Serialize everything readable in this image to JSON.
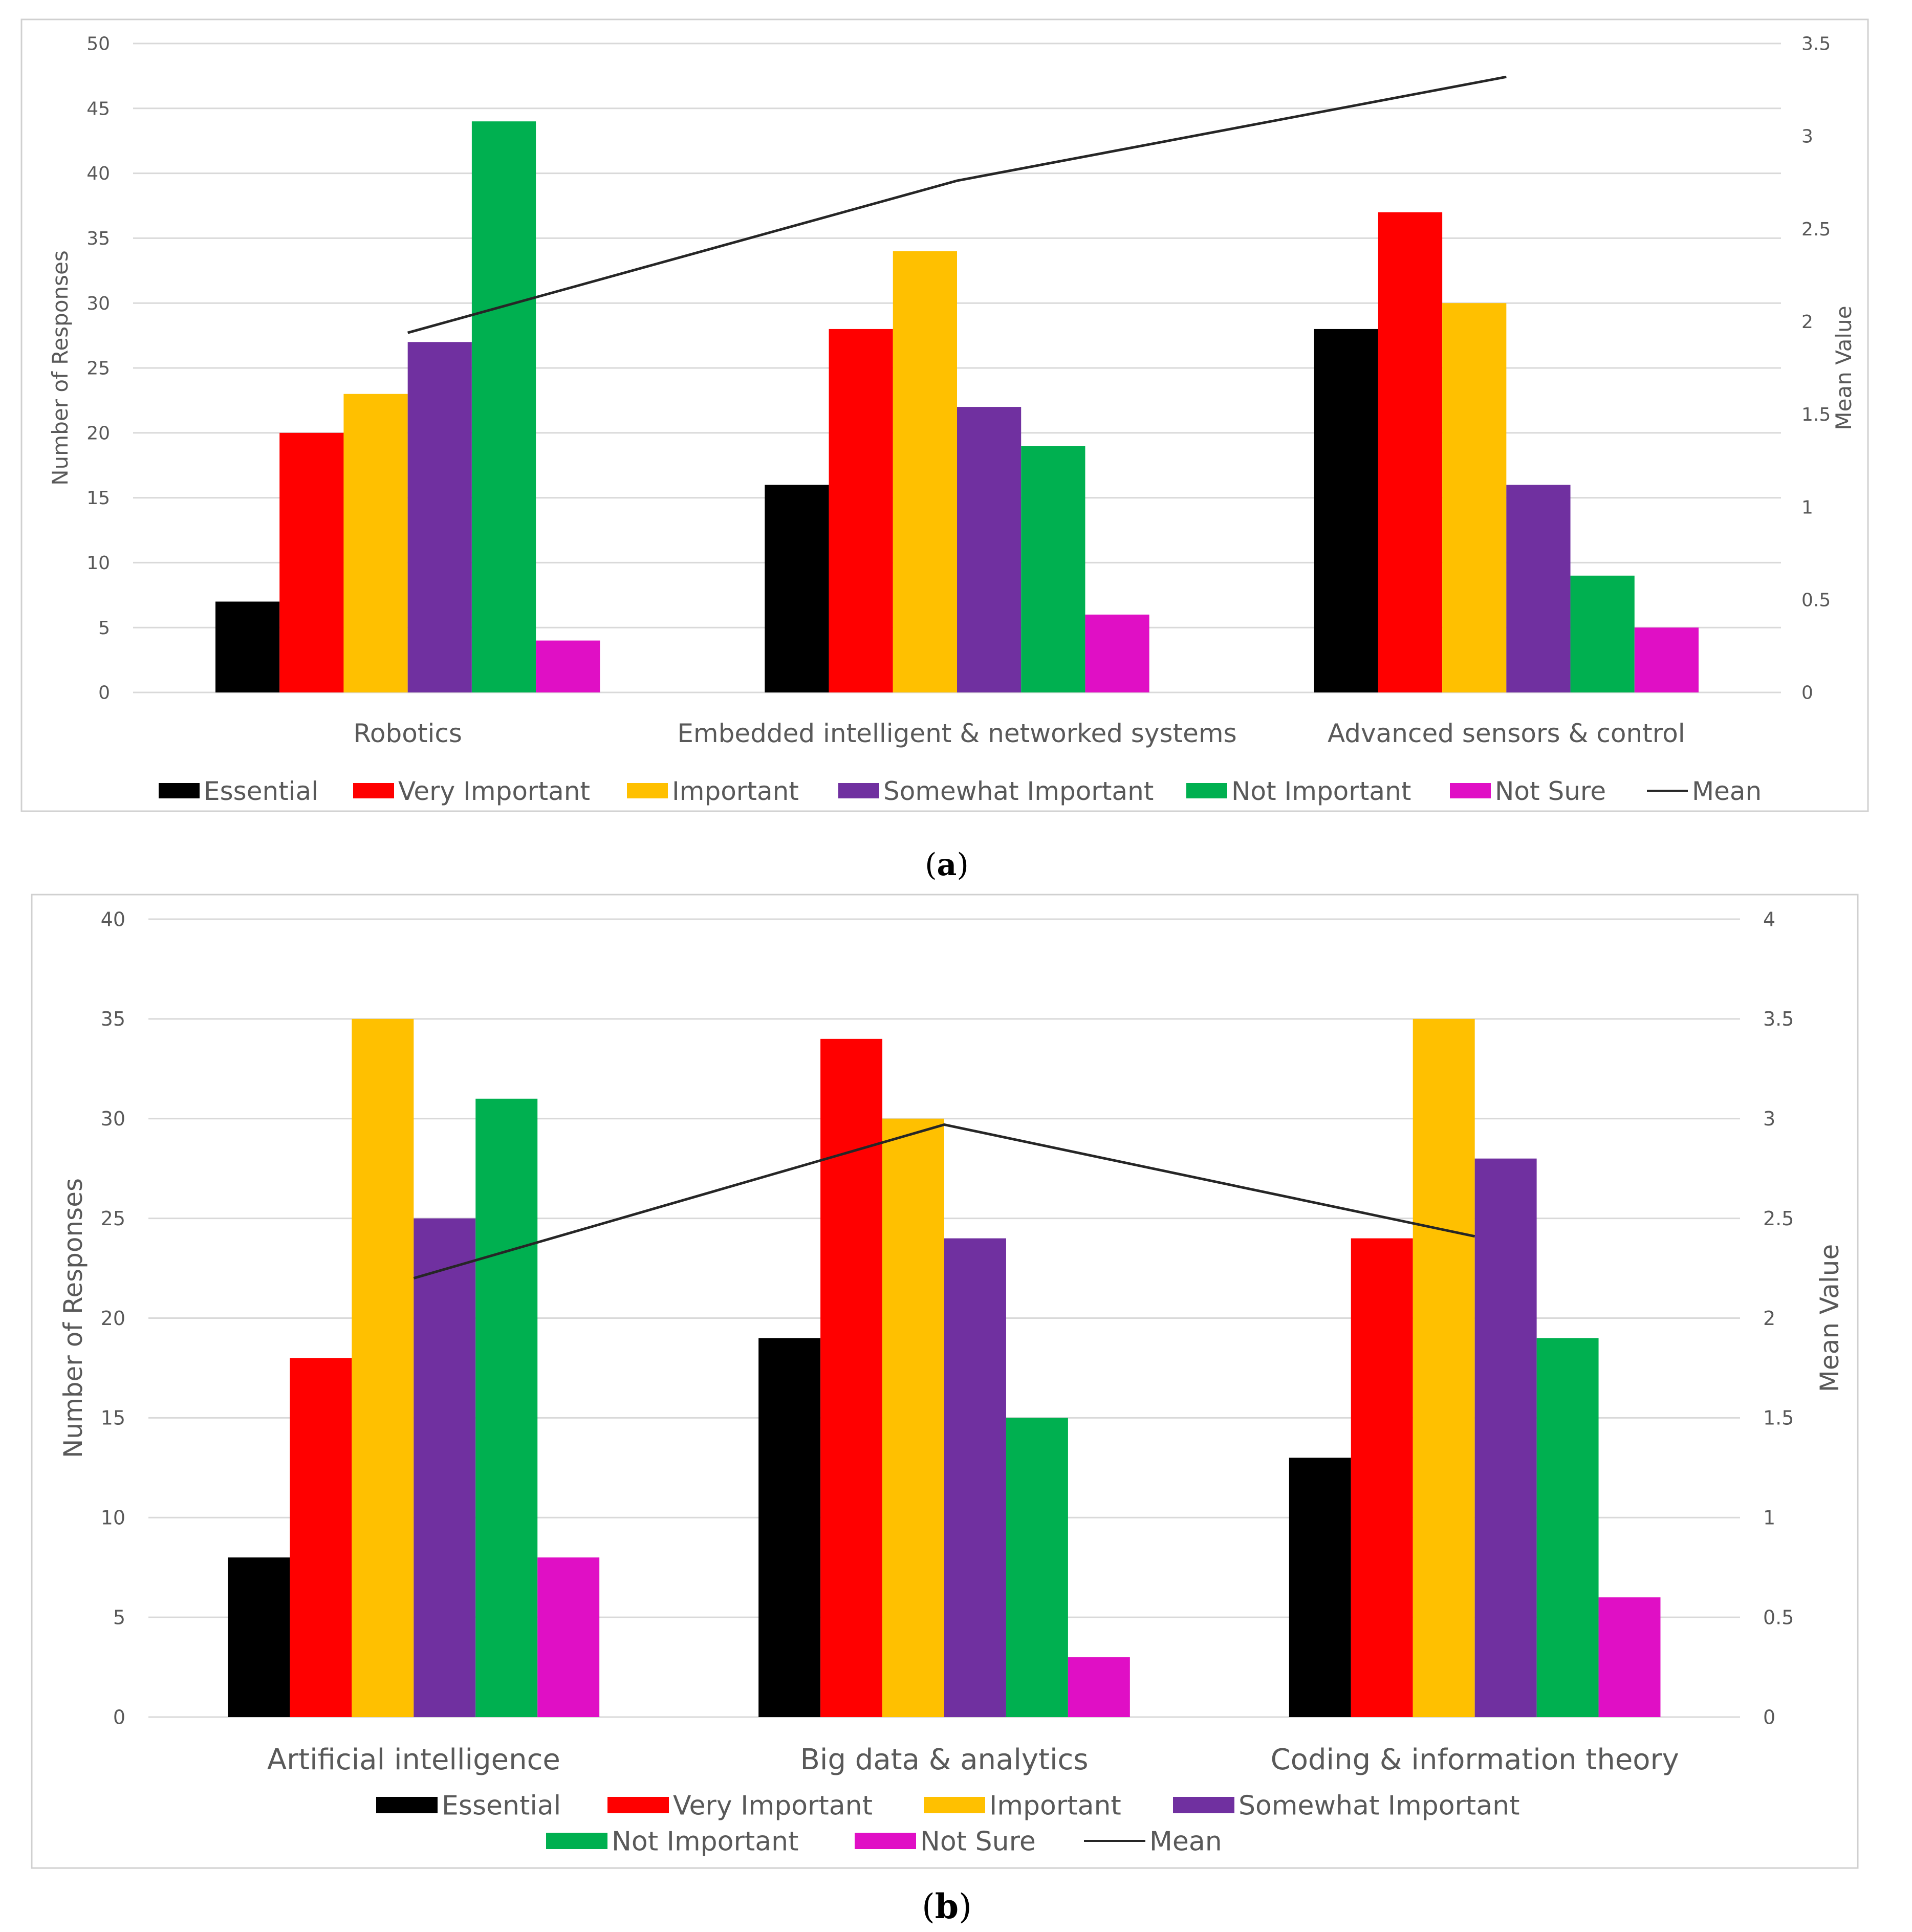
{
  "colors": {
    "Essential": "#000000",
    "Very Important": "#ff0000",
    "Important": "#ffc000",
    "Somewhat Important": "#7030a0",
    "Not Important": "#00b050",
    "Not Sure": "#e00fc5",
    "Mean": "#262626",
    "grid": "#d9d9d9",
    "frame": "#d0d0d0"
  },
  "chart_data": [
    {
      "type": "bar",
      "panel_label": "a",
      "title": "",
      "categories": [
        "Robotics",
        "Embedded intelligent & networked systems",
        "Advanced sensors & control"
      ],
      "ylabel": "Number of Responses",
      "y2label": "Mean Value",
      "ylim": [
        0,
        50
      ],
      "yticks": [
        "0",
        "5",
        "10",
        "15",
        "20",
        "25",
        "30",
        "35",
        "40",
        "45",
        "50"
      ],
      "y2lim": [
        0,
        3.5
      ],
      "y2ticks": [
        "0",
        "0.5",
        "1",
        "1.5",
        "2",
        "2.5",
        "3",
        "3.5"
      ],
      "grid": true,
      "legend_position": "bottom",
      "series": [
        {
          "name": "Essential",
          "values": [
            7,
            16,
            28
          ]
        },
        {
          "name": "Very Important",
          "values": [
            20,
            28,
            37
          ]
        },
        {
          "name": "Important",
          "values": [
            23,
            34,
            30
          ]
        },
        {
          "name": "Somewhat Important",
          "values": [
            27,
            22,
            16
          ]
        },
        {
          "name": "Not Important",
          "values": [
            44,
            19,
            9
          ]
        },
        {
          "name": "Not Sure",
          "values": [
            4,
            6,
            5
          ]
        }
      ],
      "line_series": {
        "name": "Mean",
        "axis": "secondary",
        "values": [
          1.94,
          2.76,
          3.32
        ]
      }
    },
    {
      "type": "bar",
      "panel_label": "b",
      "title": "",
      "categories": [
        "Artificial intelligence",
        "Big data & analytics",
        "Coding & information theory"
      ],
      "ylabel": "Number of Responses",
      "y2label": "Mean Value",
      "ylim": [
        0,
        40
      ],
      "yticks": [
        "0",
        "5",
        "10",
        "15",
        "20",
        "25",
        "30",
        "35",
        "40"
      ],
      "y2lim": [
        0,
        4
      ],
      "y2ticks": [
        "0",
        "0.5",
        "1",
        "1.5",
        "2",
        "2.5",
        "3",
        "3.5",
        "4"
      ],
      "grid": true,
      "legend_position": "bottom",
      "series": [
        {
          "name": "Essential",
          "values": [
            8,
            19,
            13
          ]
        },
        {
          "name": "Very Important",
          "values": [
            18,
            34,
            24
          ]
        },
        {
          "name": "Important",
          "values": [
            35,
            30,
            35
          ]
        },
        {
          "name": "Somewhat Important",
          "values": [
            25,
            24,
            28
          ]
        },
        {
          "name": "Not Important",
          "values": [
            31,
            15,
            19
          ]
        },
        {
          "name": "Not Sure",
          "values": [
            8,
            3,
            6
          ]
        }
      ],
      "line_series": {
        "name": "Mean",
        "axis": "secondary",
        "values": [
          2.2,
          2.97,
          2.41
        ]
      }
    }
  ]
}
